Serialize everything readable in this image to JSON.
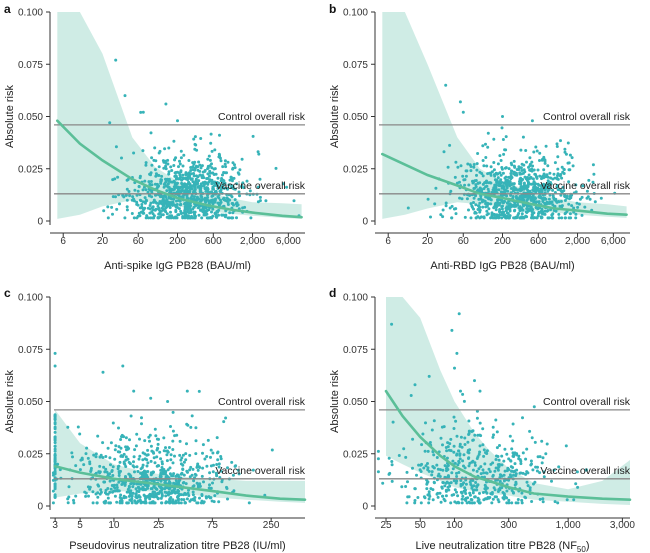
{
  "colors": {
    "band": "#bfe6dc",
    "curve": "#5bbf98",
    "points": "#36b3b8",
    "refline": "#888888"
  },
  "control_label": "Control overall risk",
  "vaccine_label": "Vaccine overall risk",
  "chart_data": [
    {
      "id": "a",
      "type": "scatter",
      "xscale": "log",
      "xlabel": "Anti-spike IgG PB28 (BAU/ml)",
      "ylabel": "Absolute risk",
      "xlim": [
        4,
        10000
      ],
      "ylim": [
        0,
        0.1
      ],
      "xticks": [
        6,
        20,
        60,
        200,
        600,
        2000,
        6000
      ],
      "xtick_labels": [
        "6",
        "20",
        "60",
        "200",
        "600",
        "2,000",
        "6,000"
      ],
      "yticks": [
        0,
        0.025,
        0.05,
        0.075,
        0.1
      ],
      "ytick_labels": [
        "0",
        "0.025",
        "0.050",
        "0.075",
        "0.100"
      ],
      "control_risk": 0.046,
      "vaccine_risk": 0.013,
      "curve": {
        "x": [
          5,
          10,
          20,
          50,
          100,
          200,
          500,
          1000,
          2000,
          5000,
          9000
        ],
        "y": [
          0.048,
          0.037,
          0.029,
          0.02,
          0.015,
          0.011,
          0.0075,
          0.0055,
          0.004,
          0.0025,
          0.0018
        ]
      },
      "band_upper": [
        0.1,
        0.1,
        0.08,
        0.04,
        0.026,
        0.019,
        0.014,
        0.011,
        0.009,
        0.0085,
        0.008
      ],
      "band_lower": [
        0.001,
        0.003,
        0.007,
        0.01,
        0.009,
        0.007,
        0.005,
        0.0035,
        0.0025,
        0.0015,
        0.001
      ],
      "scatter": {
        "seed": 11,
        "count": 900,
        "x_log_mean": 2.45,
        "x_log_sd": 0.4,
        "y_mean": 0.012,
        "y_sd": 0.009,
        "outliers": [
          [
            30,
            0.077
          ],
          [
            40,
            0.06
          ],
          [
            140,
            0.056
          ],
          [
            25,
            0.047
          ],
          [
            70,
            0.052
          ],
          [
            200,
            0.048
          ]
        ]
      }
    },
    {
      "id": "b",
      "type": "scatter",
      "xscale": "log",
      "xlabel": "Anti-RBD IgG PB28 (BAU/ml)",
      "ylabel": "Absolute risk",
      "xlim": [
        4,
        10000
      ],
      "ylim": [
        0,
        0.1
      ],
      "xticks": [
        6,
        20,
        60,
        200,
        600,
        2000,
        6000
      ],
      "xtick_labels": [
        "6",
        "20",
        "60",
        "200",
        "600",
        "2,000",
        "6,000"
      ],
      "yticks": [
        0,
        0.025,
        0.05,
        0.075,
        0.1
      ],
      "ytick_labels": [
        "0",
        "0.025",
        "0.050",
        "0.075",
        "0.100"
      ],
      "control_risk": 0.046,
      "vaccine_risk": 0.013,
      "curve": {
        "x": [
          5,
          10,
          20,
          50,
          100,
          200,
          500,
          1000,
          2000,
          5000,
          9000
        ],
        "y": [
          0.032,
          0.027,
          0.022,
          0.017,
          0.013,
          0.011,
          0.008,
          0.006,
          0.005,
          0.0035,
          0.003
        ]
      },
      "band_upper": [
        0.1,
        0.1,
        0.075,
        0.04,
        0.025,
        0.019,
        0.014,
        0.011,
        0.009,
        0.008,
        0.007
      ],
      "band_lower": [
        0.001,
        0.003,
        0.006,
        0.009,
        0.008,
        0.007,
        0.005,
        0.004,
        0.003,
        0.002,
        0.0015
      ],
      "scatter": {
        "seed": 23,
        "count": 900,
        "x_log_mean": 2.5,
        "x_log_sd": 0.4,
        "y_mean": 0.012,
        "y_sd": 0.009,
        "outliers": [
          [
            35,
            0.065
          ],
          [
            55,
            0.057
          ],
          [
            60,
            0.052
          ],
          [
            200,
            0.05
          ],
          [
            500,
            0.048
          ]
        ]
      }
    },
    {
      "id": "c",
      "type": "scatter",
      "xscale": "log",
      "xlabel": "Pseudovirus neutralization titre PB28 (IU/ml)",
      "ylabel": "Absolute risk",
      "xlim": [
        2.7,
        500
      ],
      "ylim": [
        0,
        0.1
      ],
      "xticks": [
        3,
        5,
        10,
        25,
        75,
        250
      ],
      "xtick_labels": [
        "3",
        "5",
        "10",
        "25",
        "75",
        "250"
      ],
      "yticks": [
        0,
        0.025,
        0.05,
        0.075,
        0.1
      ],
      "ytick_labels": [
        "0",
        "0.025",
        "0.050",
        "0.075",
        "0.100"
      ],
      "control_risk": 0.046,
      "vaccine_risk": 0.013,
      "curve": {
        "x": [
          3,
          5,
          10,
          20,
          40,
          80,
          150,
          300,
          500
        ],
        "y": [
          0.019,
          0.016,
          0.013,
          0.011,
          0.009,
          0.007,
          0.005,
          0.0035,
          0.003
        ]
      },
      "band_upper": [
        0.046,
        0.03,
        0.02,
        0.016,
        0.014,
        0.013,
        0.012,
        0.012,
        0.012
      ],
      "band_lower": [
        0.004,
        0.006,
        0.007,
        0.007,
        0.006,
        0.004,
        0.003,
        0.002,
        0.0015
      ],
      "scatter": {
        "seed": 37,
        "count": 750,
        "x_log_mean": 1.35,
        "x_log_sd": 0.35,
        "y_mean": 0.011,
        "y_sd": 0.01,
        "outliers": [
          [
            3,
            0.073
          ],
          [
            3,
            0.067
          ],
          [
            8,
            0.064
          ],
          [
            12,
            0.067
          ],
          [
            15,
            0.055
          ],
          [
            30,
            0.05
          ]
        ],
        "floor_x": 3,
        "floor_count": 60
      }
    },
    {
      "id": "d",
      "type": "scatter",
      "xscale": "log",
      "xlabel": "Live neutralization titre PB28 (NF",
      "xlabel_sub": "50",
      "xlabel_end": ")",
      "ylabel": "Absolute risk",
      "xlim": [
        20,
        3500
      ],
      "ylim": [
        0,
        0.1
      ],
      "xticks": [
        25,
        50,
        100,
        300,
        1000,
        3000
      ],
      "xtick_labels": [
        "25",
        "50",
        "100",
        "300",
        "1,000",
        "3,000"
      ],
      "yticks": [
        0,
        0.025,
        0.05,
        0.075,
        0.1
      ],
      "ytick_labels": [
        "0",
        "0.025",
        "0.050",
        "0.075",
        "0.100"
      ],
      "control_risk": 0.046,
      "vaccine_risk": 0.013,
      "curve": {
        "x": [
          25,
          35,
          50,
          75,
          100,
          150,
          200,
          300,
          500,
          1000,
          2000,
          3500
        ],
        "y": [
          0.055,
          0.043,
          0.033,
          0.024,
          0.019,
          0.014,
          0.012,
          0.009,
          0.006,
          0.0045,
          0.0035,
          0.003
        ]
      },
      "band_upper": [
        0.1,
        0.1,
        0.09,
        0.065,
        0.05,
        0.035,
        0.027,
        0.018,
        0.011,
        0.008,
        0.012,
        0.022
      ],
      "band_lower": [
        0.024,
        0.02,
        0.016,
        0.012,
        0.009,
        0.007,
        0.006,
        0.005,
        0.003,
        0.002,
        0.001,
        0.0005
      ],
      "scatter": {
        "seed": 53,
        "count": 520,
        "x_log_mean": 2.2,
        "x_log_sd": 0.35,
        "y_mean": 0.014,
        "y_sd": 0.013,
        "outliers": [
          [
            28,
            0.087
          ],
          [
            110,
            0.092
          ],
          [
            95,
            0.084
          ],
          [
            105,
            0.073
          ],
          [
            100,
            0.066
          ],
          [
            60,
            0.062
          ],
          [
            150,
            0.06
          ],
          [
            45,
            0.058
          ]
        ]
      }
    }
  ]
}
